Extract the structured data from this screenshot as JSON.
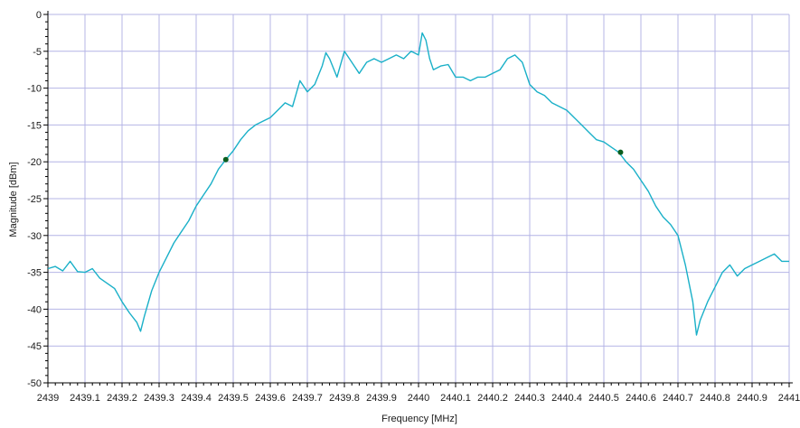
{
  "chart_data": {
    "type": "line",
    "title": "",
    "xlabel": "Frequency [MHz]",
    "ylabel": "Magnitude [dBm]",
    "xlim": [
      2439,
      2441
    ],
    "ylim": [
      -50,
      0
    ],
    "x_ticks": [
      "2439",
      "2439.1",
      "2439.2",
      "2439.3",
      "2439.4",
      "2439.5",
      "2439.6",
      "2439.7",
      "2439.8",
      "2439.9",
      "2440",
      "2440.1",
      "2440.2",
      "2440.3",
      "2440.4",
      "2440.5",
      "2440.6",
      "2440.7",
      "2440.8",
      "2440.9",
      "2441"
    ],
    "y_ticks": [
      "0",
      "-5",
      "-10",
      "-15",
      "-20",
      "-25",
      "-30",
      "-35",
      "-40",
      "-45",
      "-50"
    ],
    "grid": true,
    "legend": "none",
    "series": [
      {
        "color": "#1ab0c8",
        "points": [
          [
            2439.0,
            -34.5
          ],
          [
            2439.02,
            -34.2
          ],
          [
            2439.04,
            -34.8
          ],
          [
            2439.06,
            -33.5
          ],
          [
            2439.08,
            -34.9
          ],
          [
            2439.1,
            -35.0
          ],
          [
            2439.12,
            -34.5
          ],
          [
            2439.14,
            -35.8
          ],
          [
            2439.16,
            -36.5
          ],
          [
            2439.18,
            -37.2
          ],
          [
            2439.2,
            -39.0
          ],
          [
            2439.22,
            -40.5
          ],
          [
            2439.24,
            -41.8
          ],
          [
            2439.25,
            -43.0
          ],
          [
            2439.26,
            -41.0
          ],
          [
            2439.28,
            -37.5
          ],
          [
            2439.3,
            -35.0
          ],
          [
            2439.32,
            -33.0
          ],
          [
            2439.34,
            -31.0
          ],
          [
            2439.36,
            -29.5
          ],
          [
            2439.38,
            -28.0
          ],
          [
            2439.4,
            -26.0
          ],
          [
            2439.42,
            -24.5
          ],
          [
            2439.44,
            -23.0
          ],
          [
            2439.46,
            -21.0
          ],
          [
            2439.48,
            -19.7
          ],
          [
            2439.5,
            -18.5
          ],
          [
            2439.52,
            -17.0
          ],
          [
            2439.54,
            -15.8
          ],
          [
            2439.56,
            -15.0
          ],
          [
            2439.58,
            -14.5
          ],
          [
            2439.6,
            -14.0
          ],
          [
            2439.62,
            -13.0
          ],
          [
            2439.64,
            -12.0
          ],
          [
            2439.66,
            -12.5
          ],
          [
            2439.68,
            -9.0
          ],
          [
            2439.7,
            -10.5
          ],
          [
            2439.72,
            -9.5
          ],
          [
            2439.74,
            -7.0
          ],
          [
            2439.75,
            -5.2
          ],
          [
            2439.76,
            -6.0
          ],
          [
            2439.78,
            -8.5
          ],
          [
            2439.8,
            -5.0
          ],
          [
            2439.82,
            -6.5
          ],
          [
            2439.84,
            -8.0
          ],
          [
            2439.86,
            -6.5
          ],
          [
            2439.88,
            -6.0
          ],
          [
            2439.9,
            -6.5
          ],
          [
            2439.92,
            -6.0
          ],
          [
            2439.94,
            -5.5
          ],
          [
            2439.96,
            -6.0
          ],
          [
            2439.98,
            -5.0
          ],
          [
            2440.0,
            -5.5
          ],
          [
            2440.01,
            -2.5
          ],
          [
            2440.02,
            -3.5
          ],
          [
            2440.03,
            -6.0
          ],
          [
            2440.04,
            -7.5
          ],
          [
            2440.06,
            -7.0
          ],
          [
            2440.08,
            -6.8
          ],
          [
            2440.1,
            -8.5
          ],
          [
            2440.12,
            -8.5
          ],
          [
            2440.14,
            -9.0
          ],
          [
            2440.16,
            -8.5
          ],
          [
            2440.18,
            -8.5
          ],
          [
            2440.2,
            -8.0
          ],
          [
            2440.22,
            -7.5
          ],
          [
            2440.24,
            -6.0
          ],
          [
            2440.26,
            -5.5
          ],
          [
            2440.28,
            -6.5
          ],
          [
            2440.3,
            -9.5
          ],
          [
            2440.32,
            -10.5
          ],
          [
            2440.34,
            -11.0
          ],
          [
            2440.36,
            -12.0
          ],
          [
            2440.38,
            -12.5
          ],
          [
            2440.4,
            -13.0
          ],
          [
            2440.42,
            -14.0
          ],
          [
            2440.44,
            -15.0
          ],
          [
            2440.46,
            -16.0
          ],
          [
            2440.48,
            -17.0
          ],
          [
            2440.5,
            -17.3
          ],
          [
            2440.52,
            -18.0
          ],
          [
            2440.54,
            -18.7
          ],
          [
            2440.56,
            -20.0
          ],
          [
            2440.58,
            -21.0
          ],
          [
            2440.6,
            -22.5
          ],
          [
            2440.62,
            -24.0
          ],
          [
            2440.64,
            -26.0
          ],
          [
            2440.66,
            -27.5
          ],
          [
            2440.68,
            -28.5
          ],
          [
            2440.7,
            -30.0
          ],
          [
            2440.72,
            -34.0
          ],
          [
            2440.74,
            -39.0
          ],
          [
            2440.75,
            -43.5
          ],
          [
            2440.76,
            -41.5
          ],
          [
            2440.78,
            -39.0
          ],
          [
            2440.8,
            -37.0
          ],
          [
            2440.82,
            -35.0
          ],
          [
            2440.84,
            -34.0
          ],
          [
            2440.86,
            -35.5
          ],
          [
            2440.88,
            -34.5
          ],
          [
            2440.9,
            -34.0
          ],
          [
            2440.92,
            -33.5
          ],
          [
            2440.94,
            -33.0
          ],
          [
            2440.96,
            -32.5
          ],
          [
            2440.98,
            -33.5
          ],
          [
            2441.0,
            -33.5
          ]
        ]
      }
    ],
    "markers": [
      {
        "x": 2439.48,
        "y": -19.7,
        "color": "#0b5e1e"
      },
      {
        "x": 2440.545,
        "y": -18.7,
        "color": "#0b5e1e"
      }
    ],
    "colors": {
      "grid": "#b4b4e6",
      "axis": "#000000",
      "line": "#1ab0c8"
    }
  }
}
